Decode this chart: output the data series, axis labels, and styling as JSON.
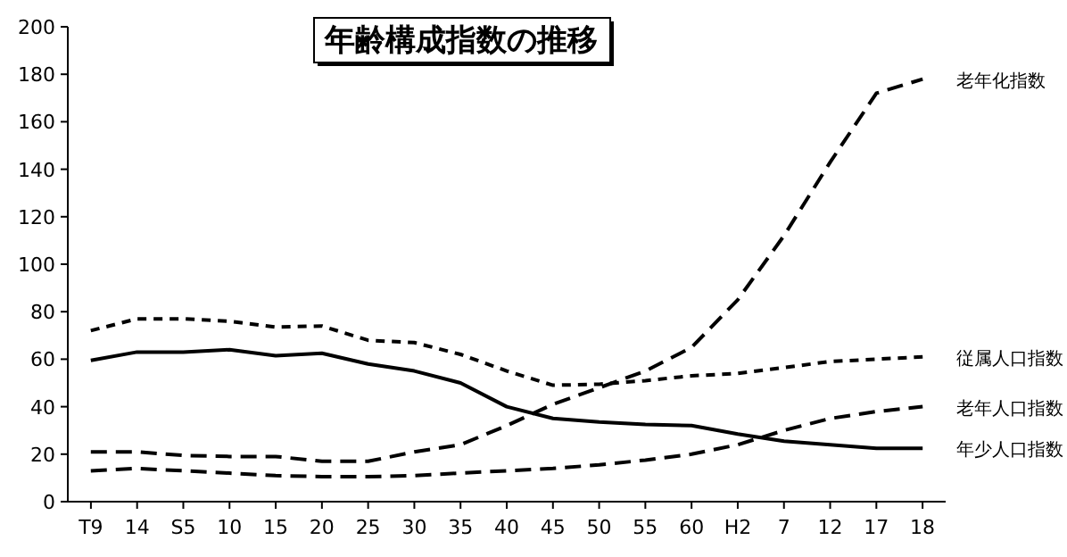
{
  "chart_data": {
    "type": "line",
    "title": "年齢構成指数の推移",
    "categories": [
      "T9",
      "14",
      "S5",
      "10",
      "15",
      "20",
      "25",
      "30",
      "35",
      "40",
      "45",
      "50",
      "55",
      "60",
      "H2",
      "7",
      "12",
      "17",
      "18"
    ],
    "series": [
      {
        "name": "老年化指数",
        "color": "#000000",
        "line_style": "dashed",
        "values": [
          21,
          21,
          19.5,
          19,
          19,
          17,
          17,
          21,
          24,
          32,
          41,
          48,
          55,
          65,
          85,
          112,
          143,
          172,
          178
        ]
      },
      {
        "name": "従属人口指数",
        "color": "#000000",
        "line_style": "dotted",
        "values": [
          72,
          77,
          77,
          76,
          73.5,
          74,
          68,
          67,
          62,
          55,
          49,
          49.5,
          51,
          53,
          54,
          56.5,
          59,
          60,
          61
        ]
      },
      {
        "name": "老年人口指数",
        "color": "#000000",
        "line_style": "dashed",
        "values": [
          13,
          14,
          13,
          12,
          11,
          10.5,
          10.5,
          11,
          12,
          13,
          14,
          15.5,
          17.5,
          20,
          24,
          30,
          35,
          38,
          40
        ]
      },
      {
        "name": "年少人口指数",
        "color": "#000000",
        "line_style": "solid",
        "values": [
          59.5,
          63,
          63,
          64,
          61.5,
          62.5,
          58,
          55,
          50,
          40,
          35,
          33.5,
          32.5,
          32,
          28.5,
          25.5,
          24,
          22.5,
          22.5
        ]
      }
    ],
    "ylim": [
      0,
      200
    ],
    "yticks": [
      0,
      20,
      40,
      60,
      80,
      100,
      120,
      140,
      160,
      180,
      200
    ],
    "grid": false,
    "marker": "none"
  }
}
